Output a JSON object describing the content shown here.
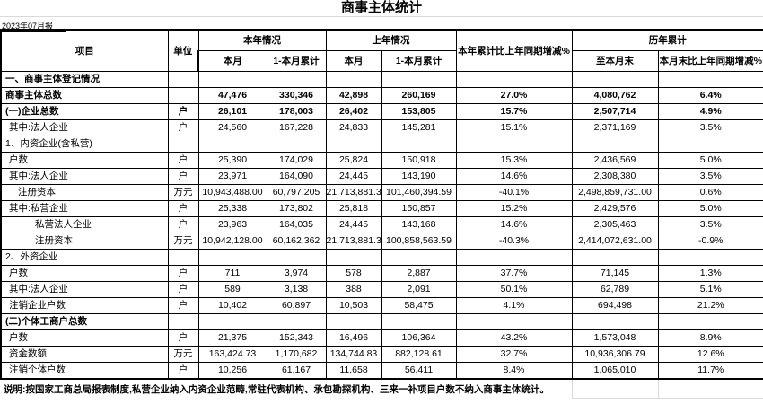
{
  "meta": {
    "title": "商事主体统计",
    "date_label": "2023年07月报",
    "note": "说明:按国家工商总局报表制度,私营企业纳入内资企业范畴,常驻代表机构、承包勘探机构、三来一补项目户数不纳入商事主体统计。"
  },
  "table": {
    "headers": {
      "item": "项目",
      "unit": "单位",
      "this_year": "本年情况",
      "last_year": "上年情况",
      "yoy_cum": "本年累计比上年同期增减%",
      "historical": "历年累计",
      "this_month": "本月",
      "cum_to_month": "1-本月累计",
      "to_month_end": "至本月末",
      "month_end_yoy": "本月末比上年同期增减%"
    },
    "rows": [
      {
        "item": "一、商事主体登记情况",
        "unit": "",
        "indent": 0,
        "bold": true,
        "values": [
          "",
          "",
          "",
          "",
          "",
          "",
          ""
        ]
      },
      {
        "item": "商事主体总数",
        "unit": "",
        "indent": 0,
        "bold": true,
        "values": [
          "47,476",
          "330,346",
          "42,898",
          "260,169",
          "27.0%",
          "4,080,762",
          "6.4%"
        ]
      },
      {
        "item": "(一)企业总数",
        "unit": "户",
        "indent": 0,
        "bold": true,
        "values": [
          "26,101",
          "178,003",
          "26,402",
          "153,805",
          "15.7%",
          "2,507,714",
          "4.9%"
        ]
      },
      {
        "item": "其中:法人企业",
        "unit": "户",
        "indent": 1,
        "bold": false,
        "values": [
          "24,560",
          "167,228",
          "24,833",
          "145,281",
          "15.1%",
          "2,371,169",
          "3.5%"
        ]
      },
      {
        "item": "1、内资企业(含私营)",
        "unit": "",
        "indent": 0,
        "bold": false,
        "values": [
          "",
          "",
          "",
          "",
          "",
          "",
          ""
        ]
      },
      {
        "item": "户数",
        "unit": "户",
        "indent": 1,
        "bold": false,
        "values": [
          "25,390",
          "174,029",
          "25,824",
          "150,918",
          "15.3%",
          "2,436,569",
          "5.0%"
        ]
      },
      {
        "item": "其中:法人企业",
        "unit": "户",
        "indent": 1,
        "bold": false,
        "values": [
          "23,971",
          "164,090",
          "24,445",
          "143,190",
          "14.6%",
          "2,308,380",
          "3.5%"
        ]
      },
      {
        "item": "注册资本",
        "unit": "万元",
        "indent": 2,
        "bold": false,
        "values": [
          "10,943,488.00",
          "60,797,205",
          "21,713,881.3",
          "101,460,394.59",
          "-40.1%",
          "2,498,859,731.00",
          "0.6%"
        ]
      },
      {
        "item": "其中:私营企业",
        "unit": "户",
        "indent": 1,
        "bold": false,
        "values": [
          "25,338",
          "173,802",
          "25,818",
          "150,857",
          "15.2%",
          "2,429,576",
          "5.0%"
        ]
      },
      {
        "item": "私营法人企业",
        "unit": "户",
        "indent": 3,
        "bold": false,
        "values": [
          "23,963",
          "164,035",
          "24,445",
          "143,168",
          "14.6%",
          "2,305,463",
          "3.5%"
        ]
      },
      {
        "item": "注册资本",
        "unit": "万元",
        "indent": 3,
        "bold": false,
        "values": [
          "10,942,128.00",
          "60,162,362",
          "21,713,881.3",
          "100,858,563.59",
          "-40.3%",
          "2,414,072,631.00",
          "-0.9%"
        ]
      },
      {
        "item": "2、外资企业",
        "unit": "",
        "indent": 0,
        "bold": false,
        "values": [
          "",
          "",
          "",
          "",
          "",
          "",
          ""
        ]
      },
      {
        "item": "户数",
        "unit": "户",
        "indent": 1,
        "bold": false,
        "values": [
          "711",
          "3,974",
          "578",
          "2,887",
          "37.7%",
          "71,145",
          "1.3%"
        ]
      },
      {
        "item": "其中:法人企业",
        "unit": "户",
        "indent": 1,
        "bold": false,
        "values": [
          "589",
          "3,138",
          "388",
          "2,091",
          "50.1%",
          "62,789",
          "5.1%"
        ]
      },
      {
        "item": "注销企业户数",
        "unit": "户",
        "indent": 1,
        "bold": false,
        "values": [
          "10,402",
          "60,897",
          "10,503",
          "58,475",
          "4.1%",
          "694,498",
          "21.2%"
        ]
      },
      {
        "item": "(二)个体工商户总数",
        "unit": "",
        "indent": 0,
        "bold": true,
        "values": [
          "",
          "",
          "",
          "",
          "",
          "",
          ""
        ]
      },
      {
        "item": "户数",
        "unit": "户",
        "indent": 1,
        "bold": false,
        "values": [
          "21,375",
          "152,343",
          "16,496",
          "106,364",
          "43.2%",
          "1,573,048",
          "8.9%"
        ]
      },
      {
        "item": "资金数额",
        "unit": "万元",
        "indent": 1,
        "bold": false,
        "values": [
          "163,424.73",
          "1,170,682",
          "134,744.83",
          "882,128.61",
          "32.7%",
          "10,936,306.79",
          "12.6%"
        ]
      },
      {
        "item": "注销个体户数",
        "unit": "户",
        "indent": 1,
        "bold": false,
        "values": [
          "10,256",
          "61,167",
          "11,658",
          "56,411",
          "8.4%",
          "1,065,010",
          "11.7%"
        ]
      }
    ]
  }
}
